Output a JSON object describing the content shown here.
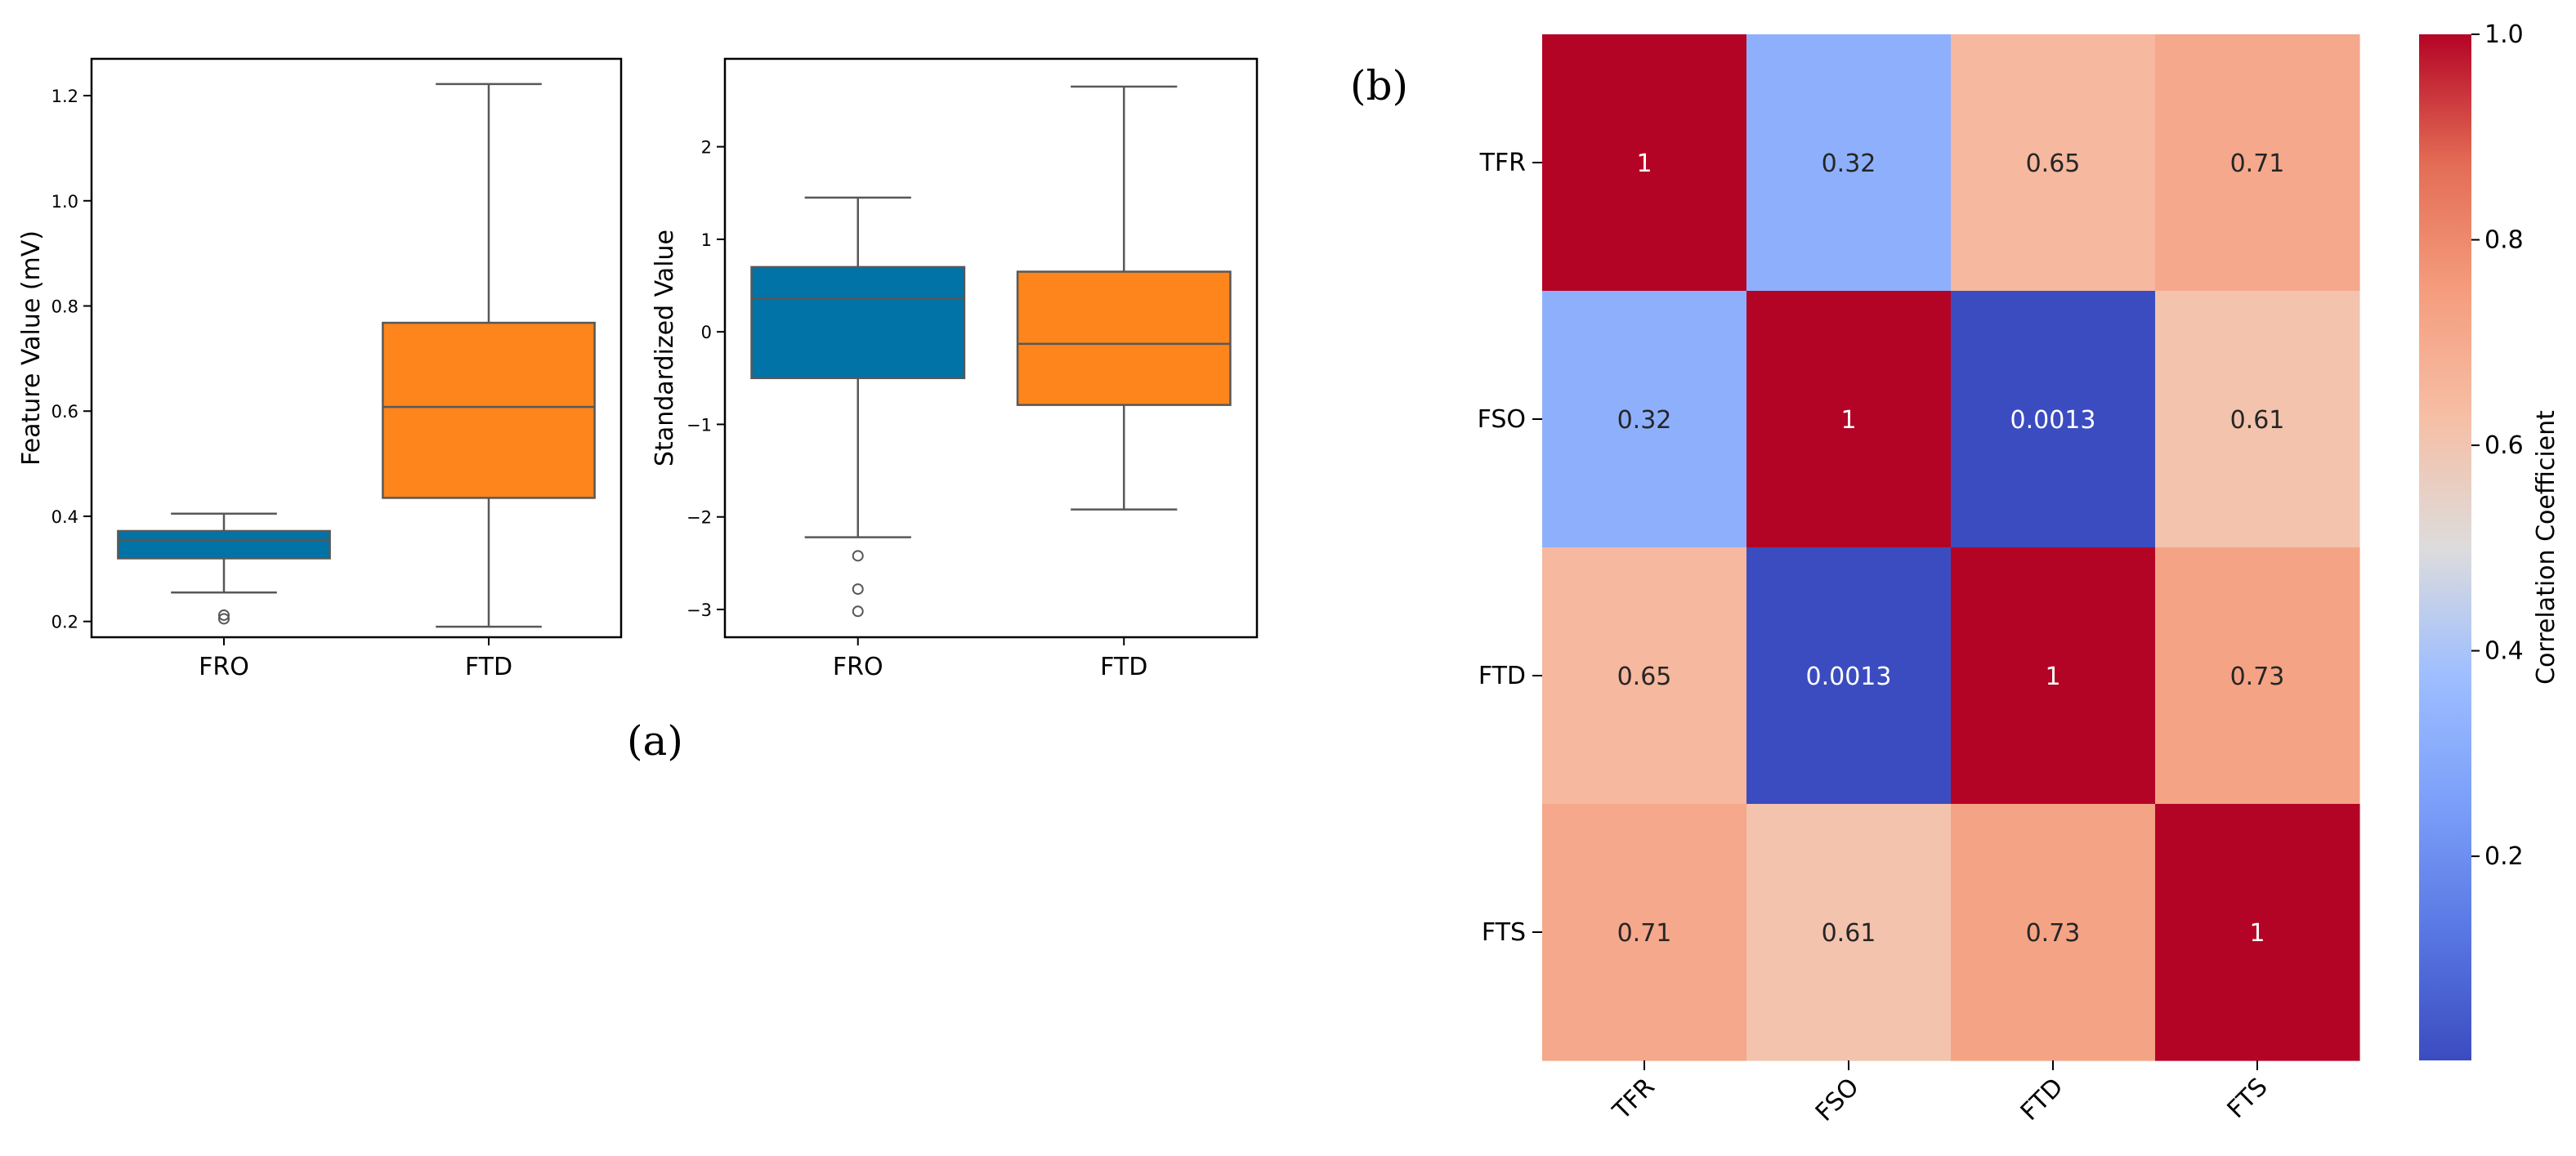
{
  "panel_labels": {
    "a": "(a)",
    "b": "(b)"
  },
  "colors": {
    "fro_box": "#0173a6",
    "ftd_box": "#fd851b",
    "whisker": "#585858",
    "axis": "#000000",
    "cold": "#3b4cc0",
    "mid": "#dddddd",
    "hot": "#b40426"
  },
  "chart_data": [
    {
      "id": "box-raw",
      "type": "box",
      "title": "",
      "xlabel": "",
      "ylabel": "Feature Value (mV)",
      "ylim": [
        0.17,
        1.27
      ],
      "yticks": [
        0.2,
        0.4,
        0.6,
        0.8,
        1.0,
        1.2
      ],
      "ytick_labels": [
        "0.2",
        "0.4",
        "0.6",
        "0.8",
        "1.0",
        "1.2"
      ],
      "categories": [
        "FRO",
        "FTD"
      ],
      "boxes": [
        {
          "name": "FRO",
          "whislo": 0.255,
          "q1": 0.32,
          "med": 0.355,
          "q3": 0.372,
          "whishi": 0.405,
          "fliers": [
            0.205,
            0.212
          ],
          "color": "#0173a6"
        },
        {
          "name": "FTD",
          "whislo": 0.19,
          "q1": 0.435,
          "med": 0.608,
          "q3": 0.768,
          "whishi": 1.222,
          "fliers": [],
          "color": "#fd851b"
        }
      ]
    },
    {
      "id": "box-std",
      "type": "box",
      "title": "",
      "xlabel": "",
      "ylabel": "Standardized Value",
      "ylim": [
        -3.3,
        2.95
      ],
      "yticks": [
        -3,
        -2,
        -1,
        0,
        1,
        2
      ],
      "ytick_labels": [
        "−3",
        "−2",
        "−1",
        "0",
        "1",
        "2"
      ],
      "categories": [
        "FRO",
        "FTD"
      ],
      "boxes": [
        {
          "name": "FRO",
          "whislo": -2.22,
          "q1": -0.5,
          "med": 0.36,
          "q3": 0.7,
          "whishi": 1.45,
          "fliers": [
            -2.42,
            -2.78,
            -3.02
          ],
          "color": "#0173a6"
        },
        {
          "name": "FTD",
          "whislo": -1.92,
          "q1": -0.79,
          "med": -0.13,
          "q3": 0.65,
          "whishi": 2.65,
          "fliers": [],
          "color": "#fd851b"
        }
      ]
    },
    {
      "id": "heatmap",
      "type": "heatmap",
      "title": "",
      "xlabel": "",
      "ylabel": "",
      "row_labels": [
        "TFR",
        "FSO",
        "FTD",
        "FTS"
      ],
      "col_labels": [
        "TFR",
        "FSO",
        "FTD",
        "FTS"
      ],
      "values": [
        [
          1,
          0.32,
          0.65,
          0.71
        ],
        [
          0.32,
          1,
          0.0013,
          0.61
        ],
        [
          0.65,
          0.0013,
          1,
          0.73
        ],
        [
          0.71,
          0.61,
          0.73,
          1
        ]
      ],
      "cell_labels": [
        [
          "1",
          "0.32",
          "0.65",
          "0.71"
        ],
        [
          "0.32",
          "1",
          "0.0013",
          "0.61"
        ],
        [
          "0.65",
          "0.0013",
          "1",
          "0.73"
        ],
        [
          "0.71",
          "0.61",
          "0.73",
          "1"
        ]
      ],
      "colorbar": {
        "label": "Correlation Coefficient",
        "range": [
          0.0013,
          1.0
        ],
        "ticks": [
          0.2,
          0.4,
          0.6,
          0.8,
          1.0
        ],
        "tick_labels": [
          "0.2",
          "0.4",
          "0.6",
          "0.8",
          "1.0"
        ],
        "colormap": "coolwarm"
      }
    }
  ]
}
